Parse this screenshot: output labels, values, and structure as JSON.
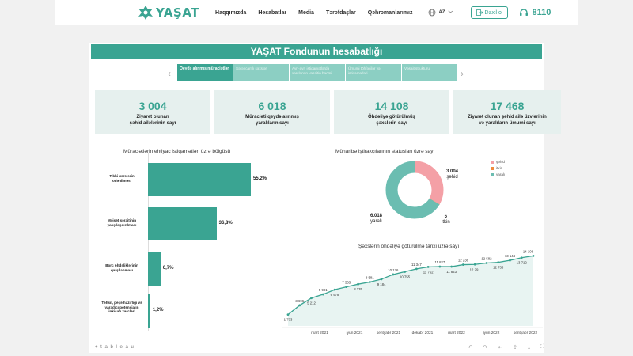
{
  "header": {
    "brand": "YAŞAT",
    "nav": [
      "Haqqımızda",
      "Hesabatlar",
      "Media",
      "Tərəfdaşlar",
      "Qəhrəmanlarımız"
    ],
    "language": "AZ",
    "login_label": "Daxil ol",
    "phone": "8110",
    "accent": "#3aa492"
  },
  "dashboard": {
    "title": "YAŞAT Fondunun hesabatlığı",
    "tabs": [
      "Qeydə alınmış müraciətlər",
      "Sərəncamlı şəxslər",
      "Ayrı-ayrı istiqamətlərdə xərclənən vəsaitin həcmi",
      "Ümumi töhfəçilər və istiqamətləri",
      "Vəsait strukturu"
    ],
    "active_tab": 0,
    "kpis": [
      {
        "value": "3 004",
        "label_1": "Ziyarət olunan",
        "label_2": "şəhid ailələrinin sayı"
      },
      {
        "value": "6 018",
        "label_1": "Müraciəti qeydə alınmış",
        "label_2": "yaralıların sayı"
      },
      {
        "value": "14 108",
        "label_1": "Öhdəliyə götürülmüş",
        "label_2": "şəxslərin sayı"
      },
      {
        "value": "17 468",
        "label_1": "Ziyarət olunan şəhid ailə üzvlərinin",
        "label_2": "və yaralıların ümumi sayı"
      }
    ]
  },
  "chart_data": [
    {
      "type": "bar",
      "title": "Müraciətlərin ehtiyac istiqamətləri üzrə bölgüsü",
      "categories": [
        "Tibbi xərclərin ödənilməsi",
        "Məişət şəraitinin yaxşılaşdırılması",
        "Borc öhdəliklərinin qarşılanması",
        "Təhsil, peşə hazırlığı və yaradıcı potensialın inkişafı xərcləri"
      ],
      "values": [
        55.2,
        36.8,
        6.7,
        1.2
      ],
      "value_labels": [
        "55,2%",
        "36,8%",
        "6,7%",
        "1,2%"
      ],
      "color": "#3aa492"
    },
    {
      "type": "pie",
      "title": "Müharibə iştirakçılarının statusları üzrə sayı",
      "categories": [
        "şəhid",
        "itkin",
        "yaralı"
      ],
      "values": [
        3004,
        5,
        6018
      ],
      "value_labels": [
        "3.004",
        "5",
        "6.018"
      ],
      "colors": [
        "#f4a0a6",
        "#f08a3c",
        "#6bbdb1"
      ]
    },
    {
      "type": "area",
      "title": "Şəxslərin öhdəliyə götürülmə tarixi üzrə sayı",
      "values": [
        1733,
        3696,
        5212,
        5991,
        6978,
        7565,
        8135,
        8581,
        9184,
        10176,
        10755,
        11347,
        11762,
        11827,
        11823,
        12236,
        12291,
        12582,
        12733,
        13144,
        13712,
        14108
      ],
      "value_labels": [
        "1 733",
        "3 696",
        "5 212",
        "5 991",
        "6 978",
        "7 565",
        "8 135",
        "8 581",
        "9 184",
        "10 176",
        "10 755",
        "11 347",
        "11 762",
        "11 827",
        "11 823",
        "12 236",
        "12 291",
        "12 582",
        "12 733",
        "13 144",
        "13 712",
        "14 108"
      ],
      "x_ticks": [
        "mart 2021",
        "iyun 2021",
        "sentyabr 2021",
        "dekabr 2021",
        "mart 2022",
        "iyun 2022",
        "sentyabr 2022"
      ],
      "color": "#3aa492",
      "fill": "#e8f4f2"
    }
  ],
  "toolbar": {
    "brand": "+ t a b l e a u"
  }
}
